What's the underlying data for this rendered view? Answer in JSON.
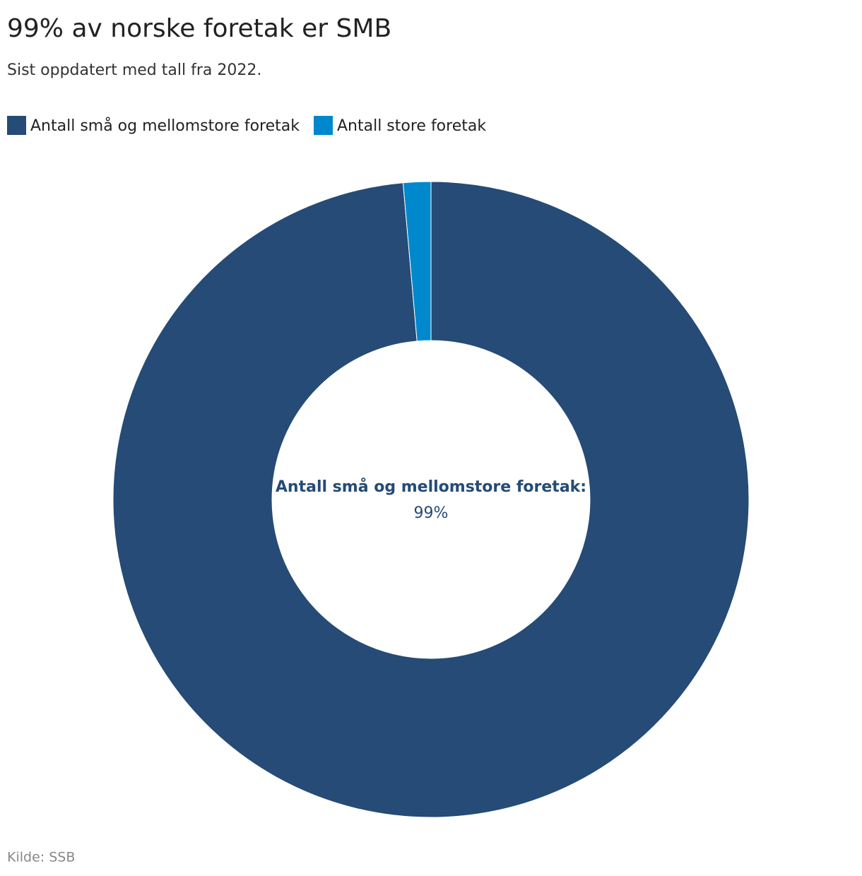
{
  "chart_data": {
    "type": "donut",
    "title": "99% av norske foretak er SMB",
    "subtitle": "Sist oppdatert med tall fra 2022.",
    "categories": [
      "Antall små og mellomstore foretak",
      "Antall store foretak"
    ],
    "values": [
      98.6,
      1.4
    ],
    "value_labels": [
      "99%",
      null
    ],
    "colors": [
      "#254b76",
      "#0088cc"
    ],
    "center_label": "Antall små og mellomstore foretak:",
    "source": "Kilde: SSB"
  }
}
